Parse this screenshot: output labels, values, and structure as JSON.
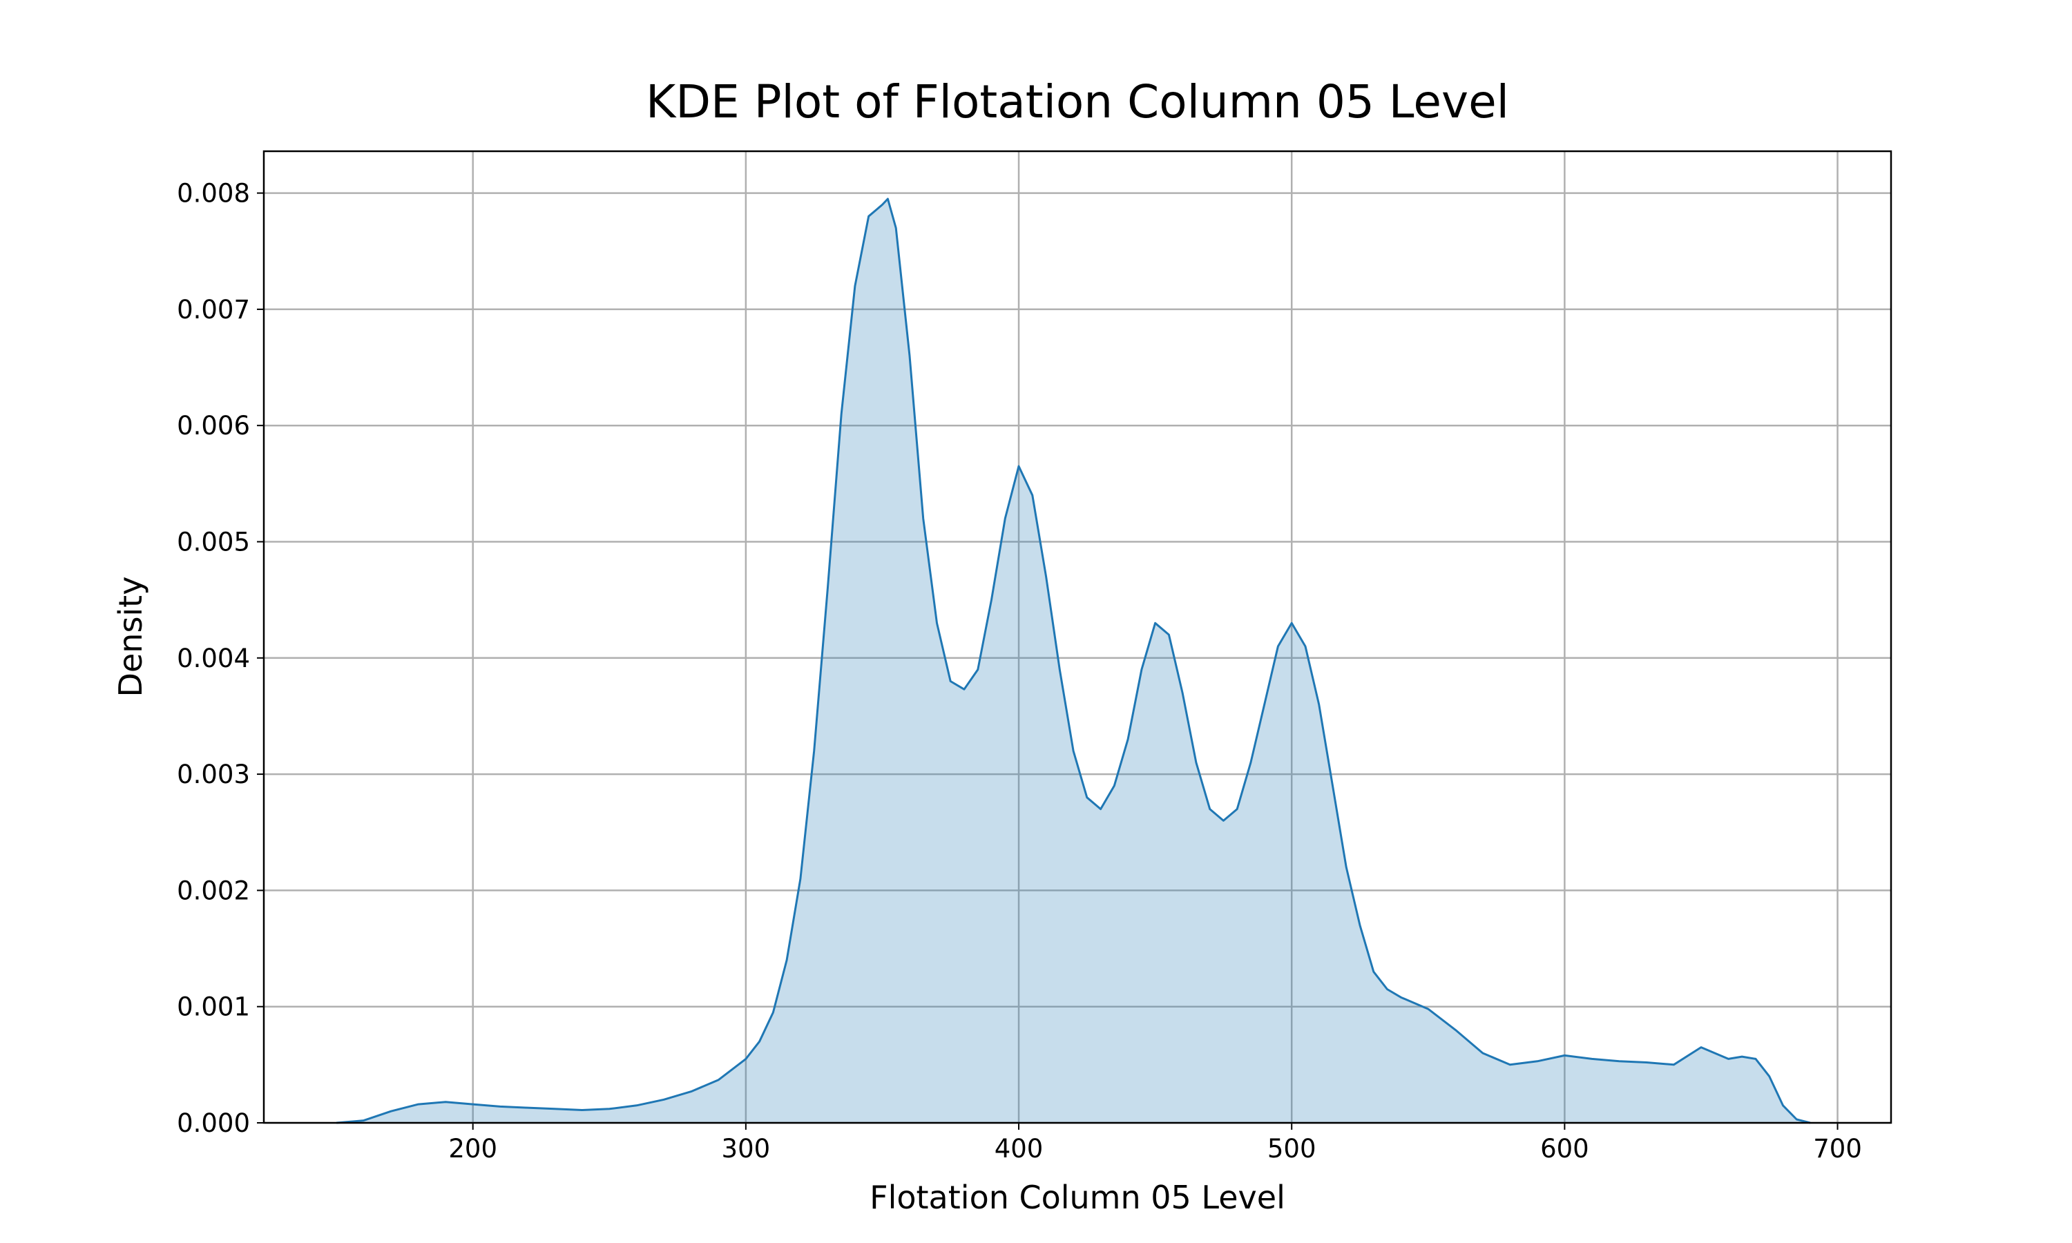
{
  "chart_data": {
    "type": "kde",
    "title": "KDE Plot of Flotation Column 05 Level",
    "xlabel": "Flotation Column 05 Level",
    "ylabel": "Density",
    "color": "#1f77b4",
    "grid": true,
    "xlim": [
      123.4,
      719.6
    ],
    "ylim": [
      0,
      0.00836
    ],
    "xticks": [
      200,
      300,
      400,
      500,
      600,
      700
    ],
    "yticks": [
      {
        "value": 0,
        "label": "0.000"
      },
      0.001,
      0.002,
      0.003,
      0.004,
      0.005,
      0.006,
      0.007,
      0.008
    ],
    "x": [
      150,
      160,
      170,
      180,
      190,
      200,
      210,
      220,
      230,
      240,
      250,
      260,
      270,
      280,
      290,
      300,
      305,
      310,
      315,
      320,
      325,
      330,
      335,
      340,
      345,
      350,
      352,
      355,
      360,
      365,
      370,
      375,
      380,
      385,
      390,
      395,
      400,
      405,
      410,
      415,
      420,
      425,
      430,
      435,
      440,
      445,
      450,
      455,
      460,
      465,
      470,
      475,
      480,
      485,
      490,
      495,
      500,
      505,
      510,
      515,
      520,
      525,
      530,
      535,
      540,
      550,
      560,
      570,
      580,
      590,
      600,
      610,
      620,
      630,
      640,
      650,
      655,
      660,
      665,
      670,
      675,
      680,
      685,
      690
    ],
    "values": [
      0,
      2e-05,
      0.0001,
      0.00016,
      0.00018,
      0.00016,
      0.00014,
      0.00013,
      0.00012,
      0.00011,
      0.00012,
      0.00015,
      0.0002,
      0.00027,
      0.00037,
      0.00055,
      0.0007,
      0.00095,
      0.0014,
      0.0021,
      0.0032,
      0.0046,
      0.0061,
      0.0072,
      0.0078,
      0.0079,
      0.00795,
      0.0077,
      0.0066,
      0.0052,
      0.0043,
      0.0038,
      0.00373,
      0.0039,
      0.0045,
      0.0052,
      0.00565,
      0.0054,
      0.0047,
      0.0039,
      0.0032,
      0.0028,
      0.0027,
      0.0029,
      0.0033,
      0.0039,
      0.0043,
      0.0042,
      0.0037,
      0.0031,
      0.0027,
      0.0026,
      0.0027,
      0.0031,
      0.0036,
      0.0041,
      0.0043,
      0.0041,
      0.0036,
      0.0029,
      0.0022,
      0.0017,
      0.0013,
      0.00115,
      0.00108,
      0.00098,
      0.0008,
      0.0006,
      0.0005,
      0.00053,
      0.00058,
      0.00055,
      0.00053,
      0.00052,
      0.0005,
      0.00065,
      0.0006,
      0.00055,
      0.00057,
      0.00055,
      0.0004,
      0.00015,
      3e-05,
      0
    ]
  }
}
